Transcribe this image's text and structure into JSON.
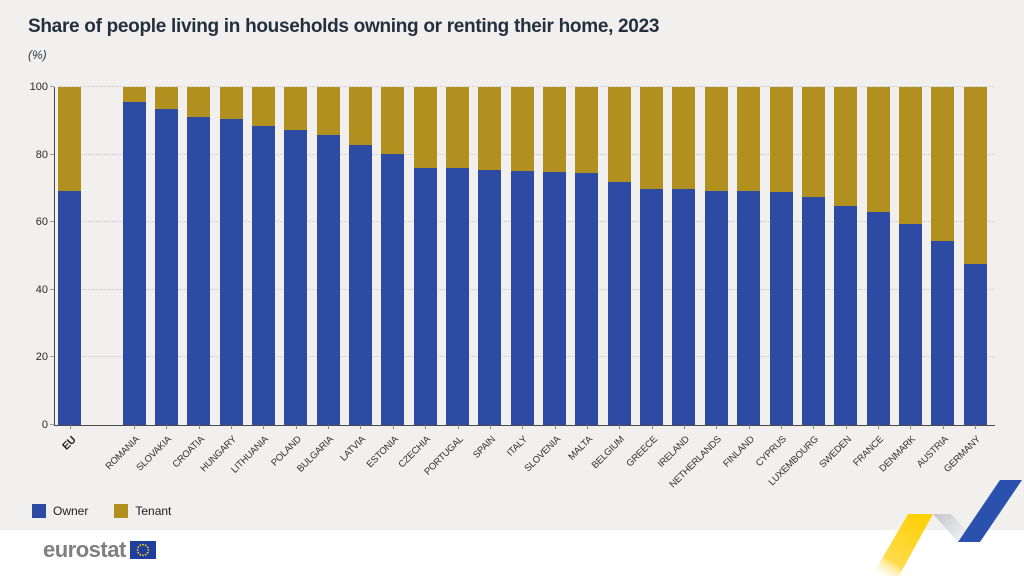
{
  "header": {
    "title": "Share of people living in households owning or renting their home, 2023",
    "subtitle": "(%)"
  },
  "chart_data": {
    "type": "bar",
    "stacked": true,
    "title": "Share of people living in households owning or renting their home, 2023",
    "unit": "(%)",
    "categories": [
      "EU",
      "ROMANIA",
      "SLOVAKIA",
      "CROATIA",
      "HUNGARY",
      "LITHUANIA",
      "POLAND",
      "BULGARIA",
      "LATVIA",
      "ESTONIA",
      "CZECHIA",
      "PORTUGAL",
      "SPAIN",
      "ITALY",
      "SLOVENIA",
      "MALTA",
      "BELGIUM",
      "GREECE",
      "IRELAND",
      "NETHERLANDS",
      "FINLAND",
      "CYPRUS",
      "LUXEMBOURG",
      "SWEDEN",
      "FRANCE",
      "DENMARK",
      "AUSTRIA",
      "GERMANY"
    ],
    "series": [
      {
        "name": "Owner",
        "color": "#2d4ba3",
        "values": [
          69.2,
          95.6,
          93.6,
          91.2,
          90.5,
          88.6,
          87.3,
          85.9,
          82.8,
          80.2,
          76.0,
          75.9,
          75.3,
          75.2,
          74.9,
          74.6,
          71.9,
          69.9,
          69.7,
          69.3,
          69.1,
          68.8,
          67.4,
          64.9,
          63.1,
          59.6,
          54.3,
          47.6
        ]
      },
      {
        "name": "Tenant",
        "color": "#b2901f",
        "values": [
          30.8,
          4.4,
          6.4,
          8.8,
          9.5,
          11.4,
          12.7,
          14.1,
          17.2,
          19.8,
          24.0,
          24.1,
          24.7,
          24.8,
          25.1,
          25.4,
          28.1,
          30.1,
          30.3,
          30.7,
          30.9,
          31.2,
          32.6,
          35.1,
          36.9,
          40.4,
          45.7,
          52.4
        ]
      }
    ],
    "ylim": [
      0,
      100
    ],
    "yticks": [
      0,
      20,
      40,
      60,
      80,
      100
    ],
    "grid": "horizontal-dotted",
    "legend_position": "bottom-left",
    "first_category_separated": true
  },
  "legend": {
    "items": [
      {
        "label": "Owner",
        "color": "#2d4ba3"
      },
      {
        "label": "Tenant",
        "color": "#b2901f"
      }
    ]
  },
  "footer": {
    "brand": "eurostat"
  },
  "colors": {
    "owner": "#2d4ba3",
    "tenant": "#b2901f",
    "background": "#f1f0ee",
    "ribbon_yellow": "#ffd10a",
    "ribbon_blue": "#2b51af"
  }
}
